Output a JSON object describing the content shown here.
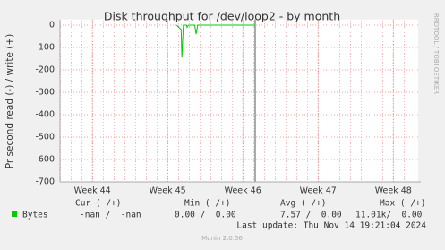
{
  "chart_data": {
    "type": "line",
    "title": "Disk throughput for /dev/loop2 - by month",
    "y_label": "Pr second read (-) / write (+)",
    "side_label": "RRDTOOL / TOBI OETIKER",
    "xlim": [
      43.57,
      48.33
    ],
    "xticks": [
      {
        "value": 44,
        "label": "Week 44"
      },
      {
        "value": 45,
        "label": "Week 45"
      },
      {
        "value": 46,
        "label": "Week 46"
      },
      {
        "value": 47,
        "label": "Week 47"
      },
      {
        "value": 48,
        "label": "Week 48"
      }
    ],
    "ylim": [
      -700,
      25
    ],
    "yticks": [
      0,
      -100,
      -200,
      -300,
      -400,
      -500,
      -600,
      -700
    ],
    "grid": true,
    "series": [
      {
        "name": "Bytes",
        "color": "#00cc00",
        "x": [
          45.12,
          45.18,
          45.19,
          45.21,
          45.25,
          45.26,
          45.28,
          45.36,
          45.38,
          45.4,
          46.17
        ],
        "values": [
          0,
          -20,
          -145,
          0,
          0,
          -10,
          0,
          0,
          -40,
          0,
          0
        ]
      }
    ],
    "summary": {
      "headers": [
        "Cur (-/+)",
        "Min (-/+)",
        "Avg (-/+)",
        "Max (-/+)"
      ],
      "cells": [
        "-nan /  -nan",
        "0.00 /  0.00",
        "7.57 /  0.00",
        "11.01k/  0.00"
      ]
    },
    "last_update": "Last update: Thu Nov 14 19:21:04 2024",
    "footer": "Munin 2.0.56"
  }
}
